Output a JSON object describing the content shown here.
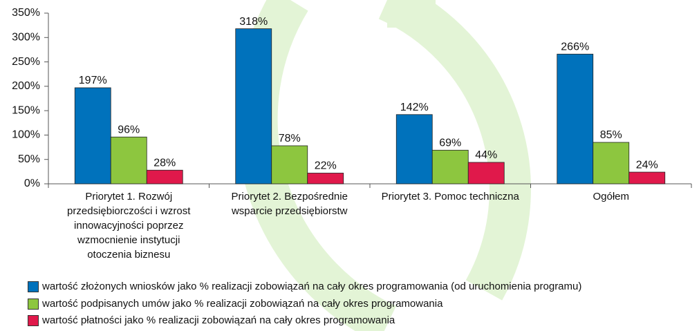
{
  "chart_data": {
    "type": "bar",
    "categories": [
      "Priorytet 1. Rozwój przedsiębiorczości i wzrost innowacyjności poprzez wzmocnienie instytucji otoczenia biznesu",
      "Priorytet 2. Bezpośrednie wsparcie przedsiębiorstw",
      "Priorytet 3. Pomoc techniczna",
      "Ogółem"
    ],
    "series": [
      {
        "name": "wartość złożonych wniosków jako % realizacji zobowiązań na cały okres programowania (od uruchomienia programu)",
        "color": "#0072bc",
        "values": [
          197,
          318,
          142,
          266
        ],
        "value_labels": [
          "197%",
          "318%",
          "142%",
          "266%"
        ]
      },
      {
        "name": "wartość podpisanych umów jako % realizacji zobowiązań na cały okres programowania",
        "color": "#8dc63f",
        "values": [
          96,
          78,
          69,
          85
        ],
        "value_labels": [
          "96%",
          "78%",
          "69%",
          "85%"
        ]
      },
      {
        "name": "wartość płatności jako % realizacji zobowiązań na cały okres programowania",
        "color": "#e0194b",
        "values": [
          28,
          22,
          44,
          24
        ],
        "value_labels": [
          "28%",
          "22%",
          "44%",
          "24%"
        ]
      }
    ],
    "ylim": [
      0,
      350
    ],
    "yticks": [
      {
        "value": 0,
        "label": "0%"
      },
      {
        "value": 50,
        "label": "50%"
      },
      {
        "value": 100,
        "label": "100%"
      },
      {
        "value": 150,
        "label": "150%"
      },
      {
        "value": 200,
        "label": "200%"
      },
      {
        "value": 250,
        "label": "250%"
      },
      {
        "value": 300,
        "label": "300%"
      },
      {
        "value": 350,
        "label": "350%"
      }
    ],
    "legend": "bottom-left"
  }
}
